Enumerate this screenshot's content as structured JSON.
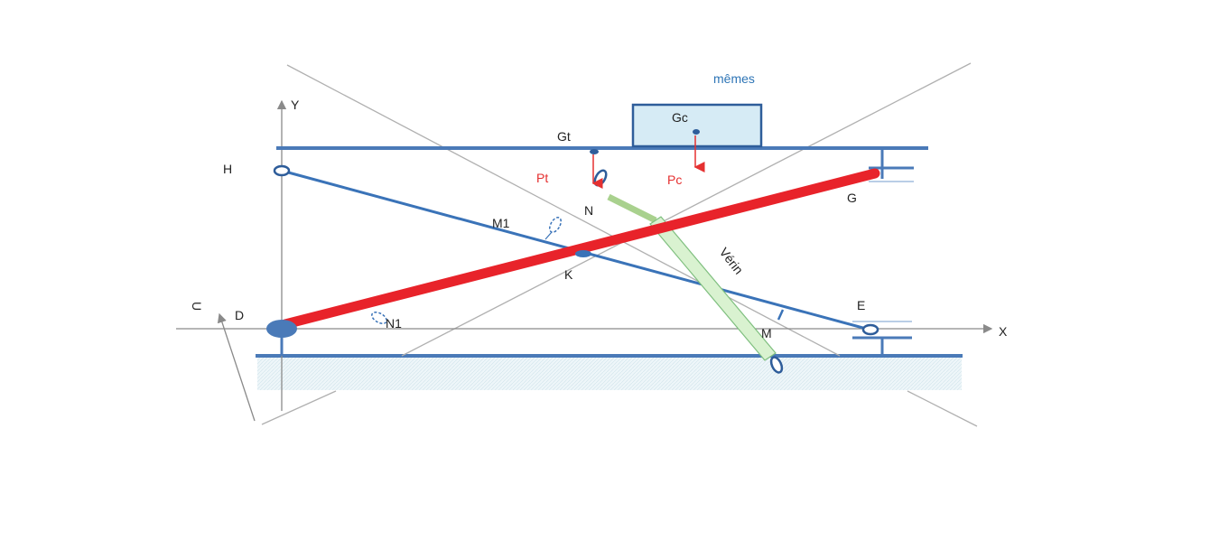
{
  "labels": {
    "memes": "mêmes",
    "Gc": "Gc",
    "Gt": "Gt",
    "Y": "Y",
    "H": "H",
    "Pt": "Pt",
    "Pc": "Pc",
    "N": "N",
    "G": "G",
    "M1": "M1",
    "K": "K",
    "Verin": "Vérin",
    "U": "U",
    "D": "D",
    "N1": "N1",
    "E": "E",
    "M": "M",
    "X": "X"
  },
  "colors": {
    "structure": "#4a7ab8",
    "outline": "#2e5d9a",
    "highlight": "#e8232a",
    "force": "#e53030",
    "cylinder_fill": "#d9f2d0",
    "cylinder_edge": "#7fbf7f",
    "cylinder_rod": "#a9d18e",
    "ground_fill": "#eaf4f7",
    "box_fill": "#d6ebf5",
    "guide": "#b0b0b0",
    "axis": "#8a8a8a"
  }
}
